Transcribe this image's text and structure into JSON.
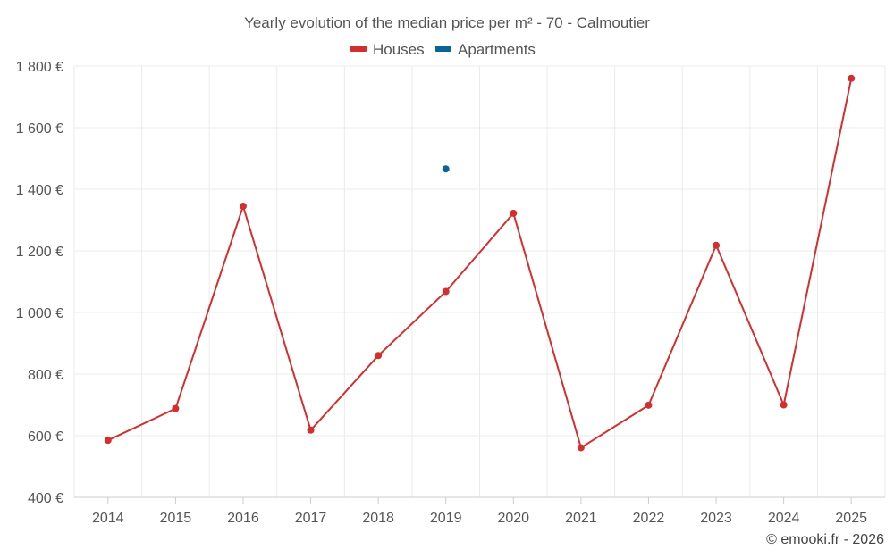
{
  "chart_data": {
    "type": "line",
    "title": "Yearly evolution of the median price per m² - 70 - Calmoutier",
    "xlabel": "",
    "ylabel": "",
    "categories": [
      "2014",
      "2015",
      "2016",
      "2017",
      "2018",
      "2019",
      "2020",
      "2021",
      "2022",
      "2023",
      "2024",
      "2025"
    ],
    "ylim": [
      400,
      1800
    ],
    "yticks": [
      400,
      600,
      800,
      1000,
      1200,
      1400,
      1600,
      1800
    ],
    "ytick_labels": [
      "400 €",
      "600 €",
      "800 €",
      "1 000 €",
      "1 200 €",
      "1 400 €",
      "1 600 €",
      "1 800 €"
    ],
    "series": [
      {
        "name": "Houses",
        "color": "#d32f2f",
        "values": [
          585,
          688,
          1345,
          618,
          860,
          1068,
          1322,
          561,
          699,
          1218,
          700,
          1760
        ]
      },
      {
        "name": "Apartments",
        "color": "#0a6496",
        "values": [
          null,
          null,
          null,
          null,
          null,
          1466,
          null,
          null,
          null,
          null,
          null,
          null
        ]
      }
    ],
    "legend_position": "top-center",
    "grid": true
  },
  "footer": "© emooki.fr - 2026"
}
